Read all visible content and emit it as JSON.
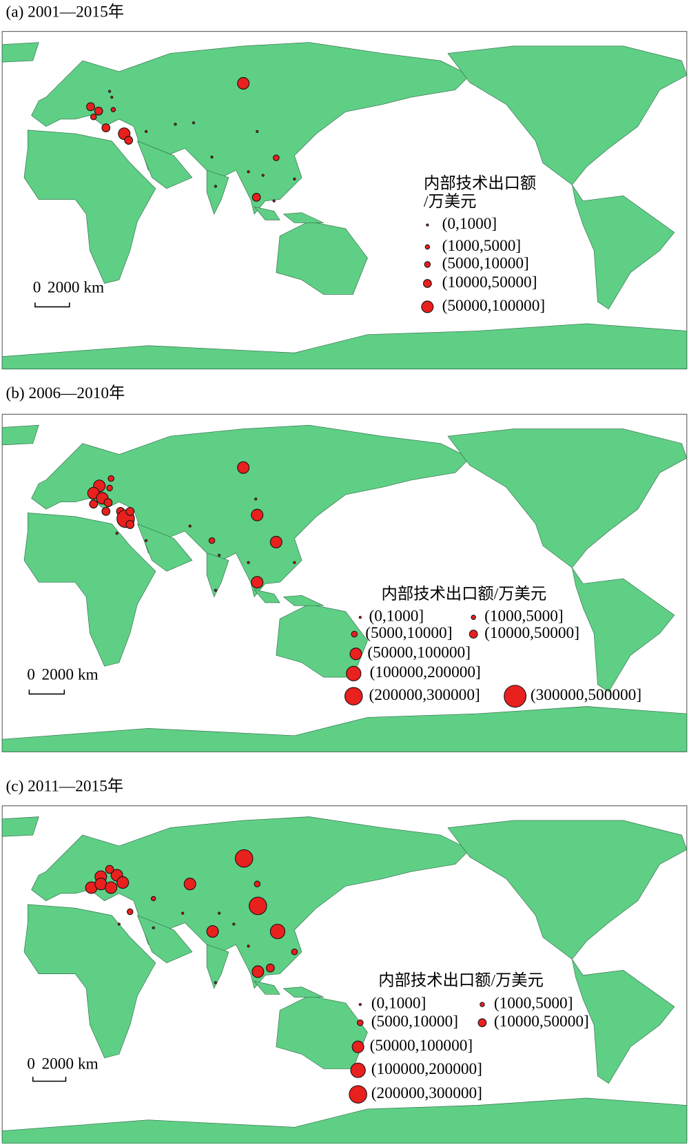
{
  "panels": [
    {
      "title": "(a) 2001—2015年",
      "legend_title": [
        "内部技术出口额",
        "/万美元"
      ],
      "legend": [
        "(0,1000]",
        "(1000,5000]",
        "(5000,10000]",
        "(10000,50000]",
        "(50000,100000]"
      ],
      "scale_bar": {
        "start": "0",
        "label": "2000 km"
      }
    },
    {
      "title": "(b) 2006—2010年",
      "legend_title": [
        "内部技术出口额/万美元"
      ],
      "legend": [
        "(0,1000]",
        "(1000,5000]",
        "(5000,10000]",
        "(10000,50000]",
        "(50000,100000]",
        "(100000,200000]",
        "(200000,300000]",
        "(300000,500000]"
      ],
      "scale_bar": {
        "start": "0",
        "label": "2000 km"
      }
    },
    {
      "title": "(c) 2011—2015年",
      "legend_title": [
        "内部技术出口额/万美元"
      ],
      "legend": [
        "(0,1000]",
        "(1000,5000]",
        "(5000,10000]",
        "(10000,50000]",
        "(50000,100000]",
        "(100000,200000]",
        "(200000,300000]"
      ],
      "scale_bar": {
        "start": "0",
        "label": "2000 km"
      }
    }
  ]
}
